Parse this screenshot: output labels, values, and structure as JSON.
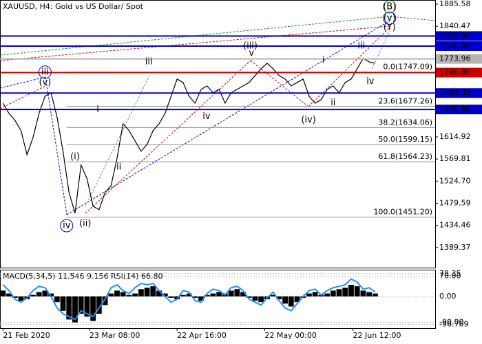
{
  "chart_data": [
    {
      "type": "line",
      "title": "XAUUSD, H4:  Gold vs US Dollar/ Spot",
      "color": "#000000",
      "values": [
        1683.7,
        1662.7,
        1648.7,
        1627.7,
        1578.6,
        1613.6,
        1662.7,
        1697.7,
        1704.8,
        1655.7,
        1585.6,
        1501.5,
        1459.5,
        1557.6,
        1529.6,
        1473.5,
        1466.5,
        1501.5,
        1515.5,
        1571.6,
        1641.7,
        1627.7,
        1606.6,
        1585.6,
        1599.7,
        1627.7,
        1641.7,
        1662.7,
        1697.7,
        1732.8,
        1725.8,
        1697.7,
        1683.7,
        1711.8,
        1718.8,
        1704.8,
        1711.8,
        1683.7,
        1704.8,
        1711.8,
        1718.8,
        1725.8,
        1739.8,
        1753.8,
        1765.0,
        1753.8,
        1739.8,
        1732.8,
        1718.8,
        1725.8,
        1732.8,
        1697.7,
        1683.7,
        1690.7,
        1711.8,
        1718.8,
        1704.8,
        1725.8,
        1732.8,
        1753.8,
        1774.8,
        1767.8,
        1765.0
      ],
      "xlim": [
        -0.5,
        72
      ],
      "xticks": [
        {
          "value": 0,
          "label": "21 Feb 2020"
        },
        {
          "value": 14.4,
          "label": "23 Mar 08:00"
        },
        {
          "value": 29,
          "label": "22 Apr 16:00"
        },
        {
          "value": 43.6,
          "label": "22 May 00:00"
        },
        {
          "value": 58.3,
          "label": "22 Jun 12:00"
        }
      ],
      "ylim": [
        1347,
        1894
      ],
      "yticks": [
        1885.58,
        1840.47,
        1614.92,
        1569.81,
        {
          "value": 1524.7,
          "label": "1524.70"
        },
        1479.59,
        1434.46,
        1389.37
      ],
      "levels": [
        {
          "value": 1820.5,
          "label": "1820.50",
          "color": "#0000cc"
        },
        {
          "value": 1800,
          "label": "1800.00",
          "color": "#0000cc"
        },
        {
          "value": 1773.96,
          "color": "#b4b4b4"
        },
        {
          "value": 1746,
          "label": "1746.00",
          "color": "#cc0000"
        },
        {
          "value": 1704.32,
          "color": "#0000cc"
        },
        {
          "value": 1670.86,
          "color": "#0000cc"
        }
      ],
      "fib_levels": [
        {
          "value": 1747.09,
          "label": "0.0(1747.09)"
        },
        {
          "value": 1677.26,
          "label": "23.6(1677.26)"
        },
        {
          "value": 1634.06,
          "label": "38.2(1634.06)"
        },
        {
          "value": 1599.15,
          "label": "50.0(1599.15)"
        },
        {
          "value": 1564.23,
          "label": "61.8(1564.23)"
        },
        {
          "value": 1451.2,
          "label": "100.0(1451.20)"
        }
      ],
      "annotations": [
        {
          "text": "(B)",
          "x": 64.4,
          "y": 1880,
          "color": "#1a8a1a",
          "circle": true
        },
        {
          "text": "(v)",
          "x": 64.4,
          "y": 1857,
          "color": "#0000cc",
          "circle": true
        },
        {
          "text": "(Y)",
          "x": 64.4,
          "y": 1838,
          "color": "#cc0000"
        },
        {
          "text": "iii",
          "x": 7,
          "y": 1747,
          "color": "#0000cc",
          "circle": true
        },
        {
          "text": "(v)",
          "x": 7,
          "y": 1726,
          "color": "#cc0000"
        },
        {
          "text": "iii",
          "x": 24.3,
          "y": 1768,
          "color": "#808080"
        },
        {
          "text": "(iii)",
          "x": 41.2,
          "y": 1800,
          "color": "#cc0000"
        },
        {
          "text": "v",
          "x": 41.4,
          "y": 1785,
          "color": "#808080"
        },
        {
          "text": "i",
          "x": 53.4,
          "y": 1771,
          "color": "#808080"
        },
        {
          "text": "iii",
          "x": 59.7,
          "y": 1800,
          "color": "#808080"
        },
        {
          "text": "iv",
          "x": 61.2,
          "y": 1728,
          "color": "#808080"
        },
        {
          "text": "iv",
          "x": 33.9,
          "y": 1656,
          "color": "#808080"
        },
        {
          "text": "(iv)",
          "x": 50.9,
          "y": 1649,
          "color": "#cc0000"
        },
        {
          "text": "ii",
          "x": 55,
          "y": 1684,
          "color": "#808080"
        },
        {
          "text": "i",
          "x": 15.8,
          "y": 1670,
          "color": "#808080"
        },
        {
          "text": "ii",
          "x": 19.3,
          "y": 1553,
          "color": "#808080"
        },
        {
          "text": "(i)",
          "x": 12,
          "y": 1574,
          "color": "#cc0000"
        },
        {
          "text": "(ii)",
          "x": 13.7,
          "y": 1438,
          "color": "#cc0000"
        },
        {
          "text": "iv",
          "x": 10.6,
          "y": 1434,
          "color": "#0000cc",
          "circle": true
        }
      ]
    },
    {
      "type": "bar",
      "title": "MACD(5,34,5) 11.546 9.156 RSI(14) 66.80",
      "series": [
        {
          "type": "bar",
          "color": "#000000",
          "values": [
            20,
            10,
            -5,
            -15,
            -10,
            5,
            15,
            20,
            10,
            -20,
            -50,
            -80,
            -90,
            -60,
            -70,
            -85,
            -60,
            -30,
            10,
            20,
            15,
            5,
            10,
            25,
            30,
            35,
            20,
            10,
            -5,
            -10,
            5,
            10,
            -5,
            -15,
            5,
            10,
            15,
            10,
            20,
            25,
            15,
            -5,
            -15,
            -20,
            -10,
            5,
            -10,
            -25,
            -35,
            -20,
            -5,
            10,
            15,
            5,
            10,
            20,
            25,
            30,
            40,
            35,
            20,
            15,
            10
          ]
        },
        {
          "type": "line",
          "color": "#1e90ff",
          "values": [
            40,
            20,
            -10,
            -20,
            -5,
            20,
            35,
            30,
            0,
            -40,
            -60,
            -70,
            -80,
            -50,
            -60,
            -70,
            -40,
            -10,
            30,
            40,
            20,
            10,
            30,
            45,
            40,
            45,
            20,
            0,
            -20,
            -10,
            20,
            15,
            -15,
            -20,
            10,
            25,
            20,
            5,
            30,
            35,
            20,
            -10,
            -20,
            -30,
            -5,
            15,
            -15,
            -40,
            -50,
            -25,
            0,
            20,
            25,
            5,
            20,
            30,
            35,
            40,
            60,
            50,
            25,
            30,
            15
          ]
        }
      ],
      "ylim": [
        -110,
        90
      ],
      "yticks": [
        78.35,
        {
          "value": 70,
          "label": "70.00"
        },
        {
          "value": 0,
          "label": "0.00"
        },
        {
          "value": -90,
          "label": "-90.00"
        },
        -96.769
      ]
    }
  ]
}
